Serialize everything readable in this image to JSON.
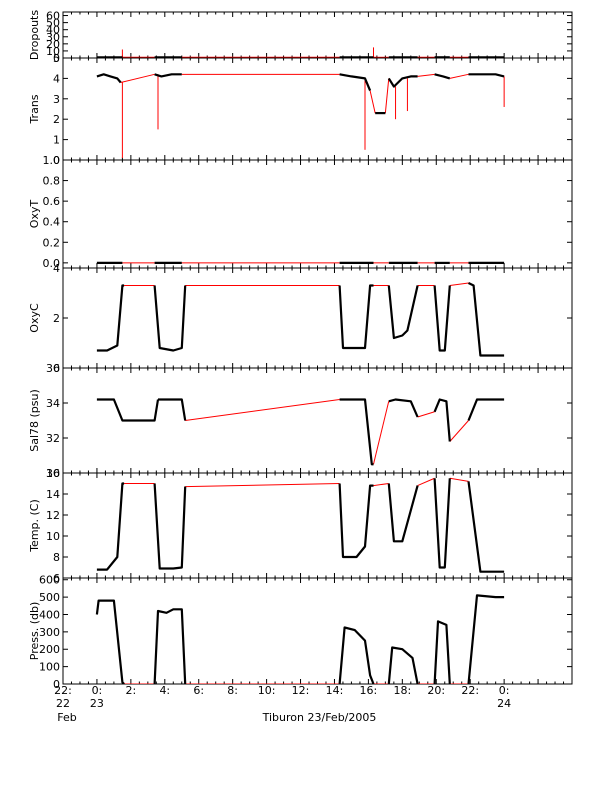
{
  "chart_data": {
    "type": "line",
    "title": "",
    "xlabel": "Tiburon 23/Feb/2005",
    "colors": {
      "data": "#000000",
      "connector": "#ff0000",
      "frame": "#000000"
    },
    "xlim": [
      -2,
      28
    ],
    "x_ticks": [
      {
        "value": -2,
        "label": "22:",
        "sub": "22",
        "sub2": "Feb"
      },
      {
        "value": 0,
        "label": "0:",
        "sub": "23"
      },
      {
        "value": 2,
        "label": "2:"
      },
      {
        "value": 4,
        "label": "4:"
      },
      {
        "value": 6,
        "label": "6:"
      },
      {
        "value": 8,
        "label": "8:"
      },
      {
        "value": 10,
        "label": "10:"
      },
      {
        "value": 12,
        "label": "12:"
      },
      {
        "value": 14,
        "label": "14:"
      },
      {
        "value": 16,
        "label": "16:"
      },
      {
        "value": 18,
        "label": "18:"
      },
      {
        "value": 20,
        "label": "20:"
      },
      {
        "value": 22,
        "label": "22:"
      },
      {
        "value": 24,
        "label": "0:",
        "sub": "24"
      }
    ],
    "panels": [
      {
        "ylabel": "Dropouts",
        "ylim": [
          0,
          65
        ],
        "ticks": [
          {
            "v": 0,
            "l": "0"
          },
          {
            "v": 10,
            "l": "10"
          },
          {
            "v": 20,
            "l": "20"
          },
          {
            "v": 30,
            "l": "30"
          },
          {
            "v": 40,
            "l": "40"
          },
          {
            "v": 50,
            "l": "50"
          },
          {
            "v": 60,
            "l": "60"
          }
        ],
        "segments": [
          [
            [
              0.0,
              1
            ],
            [
              1.4,
              1
            ],
            [
              1.5,
              1
            ]
          ],
          [
            [
              3.4,
              1
            ],
            [
              5.0,
              1
            ]
          ],
          [
            [
              14.3,
              1
            ],
            [
              16.3,
              1
            ]
          ],
          [
            [
              17.2,
              1
            ],
            [
              18.9,
              1
            ]
          ],
          [
            [
              19.9,
              1
            ],
            [
              20.8,
              1
            ]
          ],
          [
            [
              21.9,
              1
            ],
            [
              24.0,
              1
            ]
          ]
        ],
        "spikes": [
          [
            1.5,
            12
          ],
          [
            16.3,
            15
          ]
        ]
      },
      {
        "ylabel": "Trans",
        "ylim": [
          0,
          5
        ],
        "ticks": [
          {
            "v": 0,
            "l": "0"
          },
          {
            "v": 1,
            "l": "1"
          },
          {
            "v": 2,
            "l": "2"
          },
          {
            "v": 3,
            "l": "3"
          },
          {
            "v": 4,
            "l": "4"
          },
          {
            "v": 5,
            "l": "5"
          }
        ],
        "segments": [
          [
            [
              0.0,
              4.1
            ],
            [
              0.4,
              4.2
            ],
            [
              0.8,
              4.1
            ],
            [
              1.2,
              4.0
            ],
            [
              1.4,
              3.8
            ]
          ],
          [
            [
              3.4,
              4.2
            ],
            [
              3.8,
              4.1
            ],
            [
              4.4,
              4.2
            ],
            [
              5.0,
              4.2
            ]
          ],
          [
            [
              14.3,
              4.2
            ],
            [
              15.0,
              4.1
            ],
            [
              15.8,
              4.0
            ],
            [
              16.1,
              3.4
            ]
          ],
          [
            [
              16.4,
              2.3
            ],
            [
              17.0,
              2.3
            ]
          ],
          [
            [
              17.2,
              4.0
            ],
            [
              17.5,
              3.6
            ],
            [
              18.0,
              4.0
            ],
            [
              18.5,
              4.1
            ],
            [
              18.9,
              4.1
            ]
          ],
          [
            [
              19.9,
              4.2
            ],
            [
              20.4,
              4.1
            ],
            [
              20.8,
              4.0
            ]
          ],
          [
            [
              21.9,
              4.2
            ],
            [
              22.5,
              4.2
            ],
            [
              23.5,
              4.2
            ],
            [
              24.0,
              4.1
            ]
          ]
        ],
        "spikes": [
          [
            1.5,
            0.1
          ],
          [
            3.6,
            1.5
          ],
          [
            15.8,
            0.5
          ],
          [
            17.6,
            2.0
          ],
          [
            18.3,
            2.4
          ],
          [
            24.0,
            2.6
          ]
        ]
      },
      {
        "ylabel": "OxyT",
        "ylim": [
          -0.05,
          1.0
        ],
        "ticks": [
          {
            "v": 0,
            "l": "0.0"
          },
          {
            "v": 0.2,
            "l": "0.2"
          },
          {
            "v": 0.4,
            "l": "0.4"
          },
          {
            "v": 0.6,
            "l": "0.6"
          },
          {
            "v": 0.8,
            "l": "0.8"
          },
          {
            "v": 1.0,
            "l": "1.0"
          }
        ],
        "segments": [
          [
            [
              0.0,
              0
            ],
            [
              1.5,
              0
            ]
          ],
          [
            [
              3.4,
              0
            ],
            [
              5.0,
              0
            ]
          ],
          [
            [
              14.3,
              0
            ],
            [
              16.3,
              0
            ]
          ],
          [
            [
              17.2,
              0
            ],
            [
              18.9,
              0
            ]
          ],
          [
            [
              19.9,
              0
            ],
            [
              20.8,
              0
            ]
          ],
          [
            [
              21.9,
              0
            ],
            [
              24.0,
              0
            ]
          ]
        ],
        "spikes": []
      },
      {
        "ylabel": "OxyC",
        "ylim": [
          0,
          4
        ],
        "ticks": [
          {
            "v": 0,
            "l": "0"
          },
          {
            "v": 2,
            "l": "2"
          },
          {
            "v": 4,
            "l": "4"
          }
        ],
        "segments": [
          [
            [
              0.0,
              0.7
            ],
            [
              0.6,
              0.7
            ],
            [
              1.2,
              0.9
            ],
            [
              1.5,
              3.3
            ],
            [
              1.6,
              3.3
            ]
          ],
          [
            [
              3.4,
              3.3
            ],
            [
              3.7,
              0.8
            ],
            [
              4.5,
              0.7
            ],
            [
              5.0,
              0.8
            ],
            [
              5.2,
              3.3
            ]
          ],
          [
            [
              14.3,
              3.3
            ],
            [
              14.5,
              0.8
            ],
            [
              15.8,
              0.8
            ],
            [
              16.1,
              3.3
            ],
            [
              16.3,
              3.3
            ]
          ],
          [
            [
              17.2,
              3.3
            ],
            [
              17.5,
              1.2
            ],
            [
              18.0,
              1.3
            ],
            [
              18.3,
              1.5
            ],
            [
              18.9,
              3.3
            ]
          ],
          [
            [
              19.9,
              3.3
            ],
            [
              20.2,
              0.7
            ],
            [
              20.5,
              0.7
            ],
            [
              20.8,
              3.3
            ]
          ],
          [
            [
              21.9,
              3.4
            ],
            [
              22.2,
              3.3
            ],
            [
              22.6,
              0.5
            ],
            [
              23.5,
              0.5
            ],
            [
              24.0,
              0.5
            ]
          ]
        ],
        "spikes": []
      },
      {
        "ylabel": "Sal78 (psu)",
        "ylim": [
          30,
          36
        ],
        "ticks": [
          {
            "v": 30,
            "l": "30"
          },
          {
            "v": 32,
            "l": "32"
          },
          {
            "v": 34,
            "l": "34"
          },
          {
            "v": 36,
            "l": "36"
          }
        ],
        "segments": [
          [
            [
              0.0,
              34.2
            ],
            [
              1.0,
              34.2
            ],
            [
              1.5,
              33.0
            ],
            [
              2.5,
              33.0
            ],
            [
              3.4,
              33.0
            ],
            [
              3.6,
              34.2
            ]
          ],
          [
            [
              3.6,
              34.2
            ],
            [
              4.5,
              34.2
            ],
            [
              5.0,
              34.2
            ],
            [
              5.2,
              33.0
            ]
          ],
          [
            [
              14.3,
              34.2
            ],
            [
              14.6,
              34.2
            ],
            [
              15.8,
              34.2
            ],
            [
              16.2,
              30.5
            ],
            [
              16.3,
              30.5
            ]
          ],
          [
            [
              17.2,
              34.1
            ],
            [
              17.6,
              34.2
            ],
            [
              18.5,
              34.1
            ],
            [
              18.9,
              33.2
            ]
          ],
          [
            [
              19.9,
              33.5
            ],
            [
              20.2,
              34.2
            ],
            [
              20.6,
              34.1
            ],
            [
              20.8,
              31.8
            ]
          ],
          [
            [
              21.9,
              33.0
            ],
            [
              22.4,
              34.2
            ],
            [
              23.5,
              34.2
            ],
            [
              24.0,
              34.2
            ]
          ]
        ],
        "spikes": []
      },
      {
        "ylabel": "Temp. (C)",
        "ylim": [
          6,
          16
        ],
        "ticks": [
          {
            "v": 6,
            "l": "6"
          },
          {
            "v": 8,
            "l": "8"
          },
          {
            "v": 10,
            "l": "10"
          },
          {
            "v": 12,
            "l": "12"
          },
          {
            "v": 14,
            "l": "14"
          },
          {
            "v": 16,
            "l": "16"
          }
        ],
        "segments": [
          [
            [
              0.0,
              6.8
            ],
            [
              0.6,
              6.8
            ],
            [
              1.2,
              8.0
            ],
            [
              1.5,
              15.0
            ],
            [
              1.6,
              15.0
            ]
          ],
          [
            [
              3.4,
              15.0
            ],
            [
              3.7,
              6.9
            ],
            [
              4.5,
              6.9
            ],
            [
              5.0,
              7.0
            ],
            [
              5.2,
              14.7
            ]
          ],
          [
            [
              14.3,
              15.0
            ],
            [
              14.5,
              8.0
            ],
            [
              15.3,
              8.0
            ],
            [
              15.8,
              9.0
            ],
            [
              16.1,
              14.8
            ],
            [
              16.3,
              14.8
            ]
          ],
          [
            [
              17.2,
              15.0
            ],
            [
              17.5,
              9.5
            ],
            [
              18.0,
              9.5
            ],
            [
              18.9,
              14.8
            ]
          ],
          [
            [
              19.9,
              15.5
            ],
            [
              20.2,
              7.0
            ],
            [
              20.5,
              7.0
            ],
            [
              20.8,
              15.5
            ]
          ],
          [
            [
              21.9,
              15.2
            ],
            [
              22.6,
              6.6
            ],
            [
              23.5,
              6.6
            ],
            [
              24.0,
              6.6
            ]
          ]
        ],
        "spikes": []
      },
      {
        "ylabel": "Press. (db)",
        "ylim": [
          0,
          610
        ],
        "ticks": [
          {
            "v": 0,
            "l": "0"
          },
          {
            "v": 100,
            "l": "100"
          },
          {
            "v": 200,
            "l": "200"
          },
          {
            "v": 300,
            "l": "300"
          },
          {
            "v": 400,
            "l": "400"
          },
          {
            "v": 500,
            "l": "500"
          },
          {
            "v": 600,
            "l": "600"
          }
        ],
        "segments": [
          [
            [
              0.0,
              400
            ],
            [
              0.1,
              480
            ],
            [
              1.0,
              480
            ],
            [
              1.5,
              10
            ],
            [
              1.6,
              0
            ]
          ],
          [
            [
              3.4,
              0
            ],
            [
              3.6,
              420
            ],
            [
              4.1,
              410
            ],
            [
              4.5,
              430
            ],
            [
              5.0,
              430
            ],
            [
              5.2,
              0
            ]
          ],
          [
            [
              14.3,
              0
            ],
            [
              14.6,
              325
            ],
            [
              15.2,
              310
            ],
            [
              15.8,
              250
            ],
            [
              16.1,
              50
            ],
            [
              16.3,
              0
            ]
          ],
          [
            [
              17.2,
              0
            ],
            [
              17.4,
              210
            ],
            [
              18.0,
              200
            ],
            [
              18.6,
              150
            ],
            [
              18.9,
              0
            ]
          ],
          [
            [
              19.9,
              0
            ],
            [
              20.1,
              360
            ],
            [
              20.6,
              340
            ],
            [
              20.8,
              0
            ]
          ],
          [
            [
              21.9,
              0
            ],
            [
              22.4,
              510
            ],
            [
              23.5,
              500
            ],
            [
              24.0,
              500
            ]
          ]
        ],
        "spikes": []
      }
    ]
  }
}
